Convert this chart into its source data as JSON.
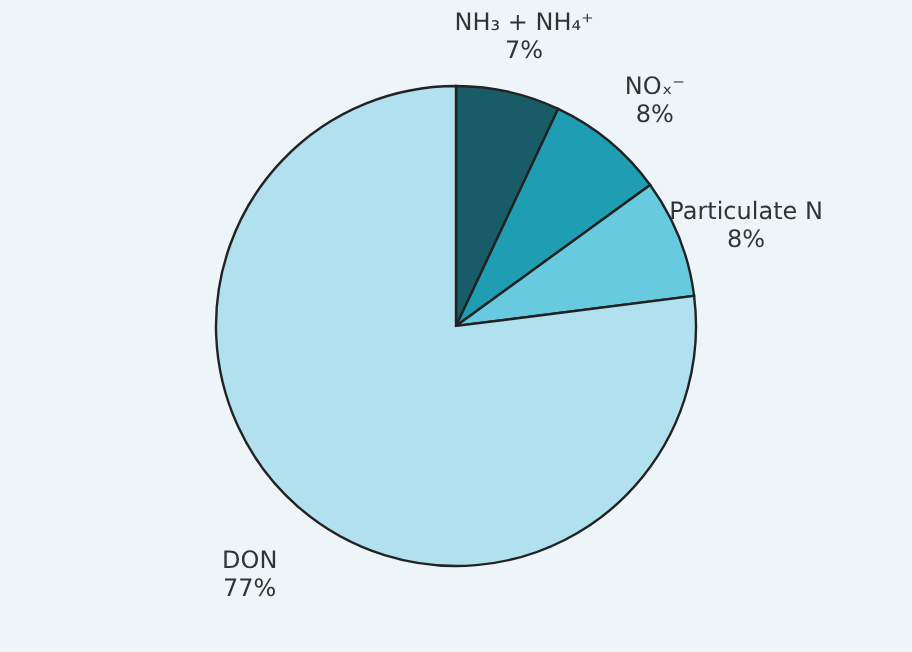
{
  "chart_data": {
    "type": "pie",
    "categories": [
      "NH₃ + NH₄⁺",
      "NOₓ⁻",
      "Particulate N",
      "DON"
    ],
    "values": [
      7,
      8,
      8,
      77
    ],
    "colors": [
      "#175c66",
      "#1e9db3",
      "#68cadf",
      "#b1e0ee"
    ],
    "value_labels": [
      "7%",
      "8%",
      "8%",
      "77%"
    ]
  }
}
